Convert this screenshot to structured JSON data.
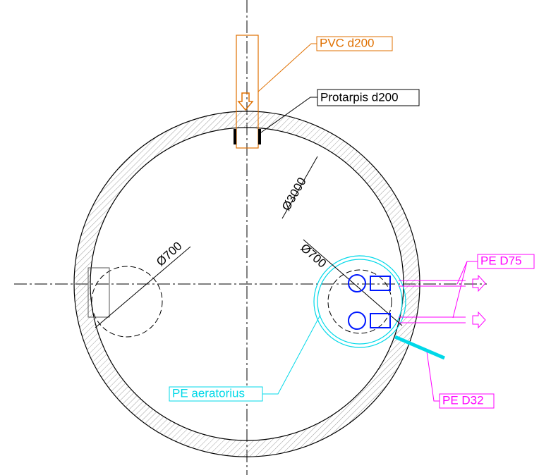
{
  "labels": {
    "pvc": "PVC d200",
    "protarpis": "Protarpis d200",
    "outer_diameter": "Ø3000",
    "left_diameter": "Ø700",
    "right_diameter": "Ø700",
    "pe_d75": "PE D75",
    "pe_aerator": "PE aeratorius",
    "pe_d32": "PE D32"
  }
}
